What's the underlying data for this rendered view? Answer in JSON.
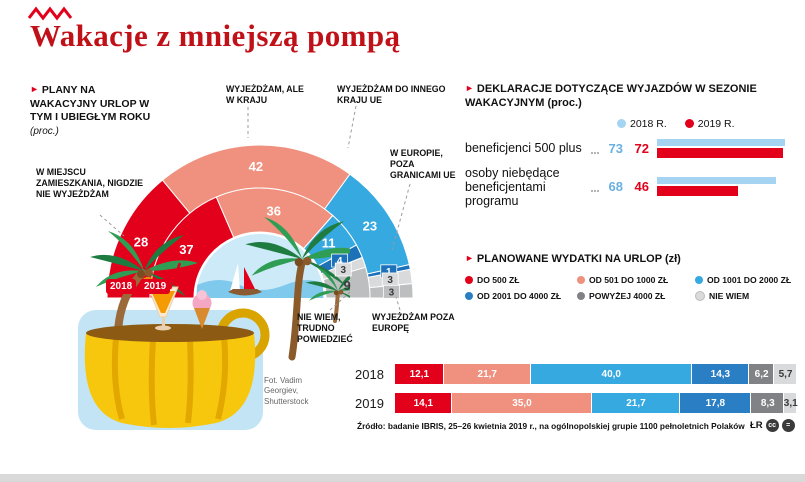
{
  "page": {
    "title": "Wakacje z mniejszą pompą",
    "source": "Źródło: badanie IBRIS, 25–26 kwietnia 2019 r., na ogólnopolskiej grupie 1100 pełnoletnich Polaków",
    "author_initials": "ŁR",
    "photo_credit": "Fot. Vadim Georgiev, Shutterstock",
    "license": {
      "cc": "cc",
      "nd": "="
    }
  },
  "vacation_plans": {
    "heading": "Plany na wakacyjny urlop w tym i ubiegłym roku",
    "heading_note": "(proc.)"
  },
  "declarations": {
    "heading": "Deklaracje dotyczące wyjazdów w sezonie wakacyjnym",
    "heading_note": "(proc.)"
  },
  "spending": {
    "heading": "Planowane wydatki na urlop",
    "heading_note": "(zł)"
  },
  "chart_data": [
    {
      "type": "donut",
      "shape": "semicircle",
      "title": "Plany na wakacyjny urlop w tym i ubiegłym roku (proc.)",
      "categories": [
        "W miejscu zamieszkania, nigdzie nie wyjeżdżam",
        "Wyjeżdżam, ale w kraju",
        "Wyjeżdżam do innego kraju UE",
        "W Europie, poza granicami UE",
        "Wyjeżdżam poza Europę",
        "Nie wiem, trudno powiedzieć"
      ],
      "colors": [
        "#e2001a",
        "#f0907e",
        "#36a9e1",
        "#1d71b8",
        "#d8dadb",
        "#bcbec0"
      ],
      "series": [
        {
          "name": "2018",
          "ring": "outer",
          "values": [
            28,
            42,
            23,
            1,
            3,
            3
          ]
        },
        {
          "name": "2019",
          "ring": "inner",
          "values": [
            37,
            36,
            11,
            4,
            3,
            9
          ]
        }
      ]
    },
    {
      "type": "bar",
      "orientation": "horizontal-grouped",
      "title": "Deklaracje dotyczące wyjazdów w sezonie wakacyjnym (proc.)",
      "categories": [
        "beneficjenci 500 plus",
        "osoby niebędące beneficjentami programu"
      ],
      "xlim": [
        0,
        80
      ],
      "legend_position": "top-right",
      "series": [
        {
          "name": "2018 r.",
          "color": "#a5d3f2",
          "values": [
            73,
            68
          ]
        },
        {
          "name": "2019 r.",
          "color": "#e2001a",
          "values": [
            72,
            46
          ]
        }
      ]
    },
    {
      "type": "bar",
      "orientation": "horizontal-stacked",
      "title": "Planowane wydatki na urlop (zł)",
      "categories": [
        "2018",
        "2019"
      ],
      "segments": [
        "Do 500 zł",
        "Od 501 do 1000 zł",
        "Od 1001 do 2000 zł",
        "Od 2001 do 4000 zł",
        "Powyżej 4000 zł",
        "Nie wiem"
      ],
      "colors": [
        "#e2001a",
        "#f0907e",
        "#36a9e1",
        "#2a7ec4",
        "#808285",
        "#d9dadb"
      ],
      "xlim": [
        0,
        100
      ],
      "series": [
        {
          "name": "2018",
          "values": [
            12.1,
            21.7,
            40.0,
            14.3,
            6.2,
            5.7
          ],
          "labels": [
            "12,1",
            "21,7",
            "40,0",
            "14,3",
            "6,2",
            "5,7"
          ]
        },
        {
          "name": "2019",
          "values": [
            14.1,
            35.0,
            21.7,
            17.8,
            8.3,
            3.1
          ],
          "labels": [
            "14,1",
            "35,0",
            "21,7",
            "17,8",
            "8,3",
            "3,1"
          ]
        }
      ]
    }
  ]
}
